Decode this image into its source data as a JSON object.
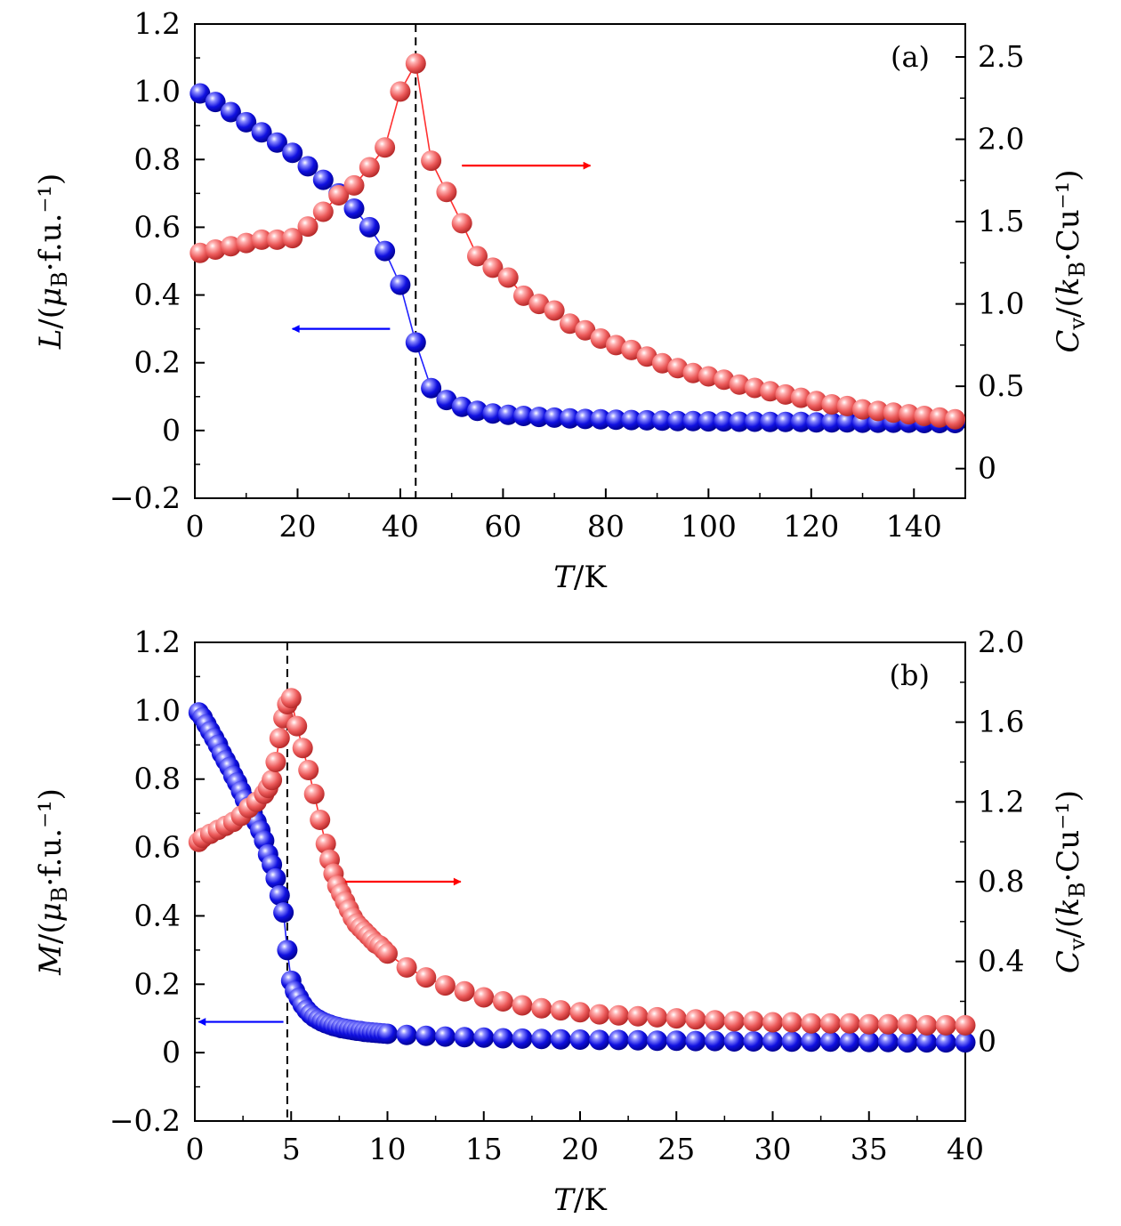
{
  "chart_data": [
    {
      "type": "scatter",
      "panel_label": "(a)",
      "xlabel": {
        "italic": "T",
        "rest": "/K"
      },
      "xlim": [
        0,
        150
      ],
      "xticks": [
        0,
        20,
        40,
        60,
        80,
        100,
        120,
        140
      ],
      "xtick_labels": [
        "0",
        "20",
        "40",
        "60",
        "80",
        "100",
        "120",
        "140"
      ],
      "ylabel_left": {
        "italic": "L",
        "rest": "/(μB·f.u.⁻¹)"
      },
      "ylim_left": [
        -0.2,
        1.2
      ],
      "yticks_left": [
        -0.2,
        0,
        0.2,
        0.4,
        0.6,
        0.8,
        1.0,
        1.2
      ],
      "ytick_labels_left": [
        "−0.2",
        "0",
        "0.2",
        "0.4",
        "0.6",
        "0.8",
        "1.0",
        "1.2"
      ],
      "ylabel_right": {
        "italic": "C",
        "rest": "v/(kB·Cu⁻¹)"
      },
      "ylim_right": [
        -0.18,
        2.7
      ],
      "yticks_right": [
        0,
        0.5,
        1.0,
        1.5,
        2.0,
        2.5
      ],
      "ytick_labels_right": [
        "0",
        "0.5",
        "1.0",
        "1.5",
        "2.0",
        "2.5"
      ],
      "vline_x": 43,
      "arrow_left": {
        "x_from": 38,
        "x_to": 19,
        "y": 0.3
      },
      "arrow_right": {
        "x_from": 52,
        "x_to": 77,
        "y": 1.84
      },
      "series": [
        {
          "name": "L",
          "axis": "left",
          "color": "#0f0fd6",
          "x": [
            1,
            4,
            7,
            10,
            13,
            16,
            19,
            22,
            25,
            28,
            31,
            34,
            37,
            40,
            43,
            46,
            49,
            52,
            55,
            58,
            61,
            64,
            67,
            70,
            73,
            76,
            79,
            82,
            85,
            88,
            91,
            94,
            97,
            100,
            103,
            106,
            109,
            112,
            115,
            118,
            121,
            124,
            127,
            130,
            133,
            136,
            139,
            142,
            145,
            148
          ],
          "y": [
            0.995,
            0.97,
            0.94,
            0.91,
            0.88,
            0.85,
            0.82,
            0.78,
            0.74,
            0.7,
            0.655,
            0.6,
            0.53,
            0.43,
            0.26,
            0.125,
            0.09,
            0.07,
            0.058,
            0.05,
            0.046,
            0.043,
            0.04,
            0.038,
            0.036,
            0.034,
            0.033,
            0.032,
            0.031,
            0.03,
            0.029,
            0.028,
            0.028,
            0.027,
            0.027,
            0.026,
            0.026,
            0.025,
            0.025,
            0.025,
            0.024,
            0.024,
            0.024,
            0.023,
            0.023,
            0.023,
            0.023,
            0.022,
            0.022,
            0.022
          ]
        },
        {
          "name": "Cv",
          "axis": "right",
          "color": "#e85050",
          "x": [
            1,
            4,
            7,
            10,
            13,
            16,
            19,
            22,
            25,
            28,
            31,
            34,
            37,
            40,
            43,
            46,
            49,
            52,
            55,
            58,
            61,
            64,
            67,
            70,
            73,
            76,
            79,
            82,
            85,
            88,
            91,
            94,
            97,
            100,
            103,
            106,
            109,
            112,
            115,
            118,
            121,
            124,
            127,
            130,
            133,
            136,
            139,
            142,
            145,
            148
          ],
          "y": [
            1.31,
            1.33,
            1.35,
            1.37,
            1.39,
            1.39,
            1.4,
            1.47,
            1.56,
            1.66,
            1.72,
            1.83,
            1.95,
            2.29,
            2.46,
            1.87,
            1.68,
            1.49,
            1.29,
            1.22,
            1.16,
            1.05,
            1.0,
            0.96,
            0.88,
            0.84,
            0.79,
            0.75,
            0.72,
            0.68,
            0.64,
            0.61,
            0.58,
            0.56,
            0.54,
            0.51,
            0.49,
            0.47,
            0.45,
            0.43,
            0.41,
            0.39,
            0.38,
            0.36,
            0.35,
            0.34,
            0.33,
            0.32,
            0.31,
            0.3
          ]
        }
      ]
    },
    {
      "type": "scatter",
      "panel_label": "(b)",
      "xlabel": {
        "italic": "T",
        "rest": "/K"
      },
      "xlim": [
        0,
        40
      ],
      "xticks": [
        0,
        5,
        10,
        15,
        20,
        25,
        30,
        35,
        40
      ],
      "xtick_labels": [
        "0",
        "5",
        "10",
        "15",
        "20",
        "25",
        "30",
        "35",
        "40"
      ],
      "ylabel_left": {
        "italic": "M",
        "rest": "/(μB·f.u.⁻¹)"
      },
      "ylim_left": [
        -0.2,
        1.2
      ],
      "yticks_left": [
        -0.2,
        0,
        0.2,
        0.4,
        0.6,
        0.8,
        1.0,
        1.2
      ],
      "ytick_labels_left": [
        "−0.2",
        "0",
        "0.2",
        "0.4",
        "0.6",
        "0.8",
        "1.0",
        "1.2"
      ],
      "ylabel_right": {
        "italic": "C",
        "rest": "v/(kB·Cu⁻¹)"
      },
      "ylim_right": [
        -0.4,
        2.0
      ],
      "yticks_right": [
        0,
        0.4,
        0.8,
        1.2,
        1.6,
        2.0
      ],
      "ytick_labels_right": [
        "0",
        "0.4",
        "0.8",
        "1.2",
        "1.6",
        "2.0"
      ],
      "vline_x": 4.8,
      "arrow_left": {
        "x_from": 4.6,
        "x_to": 0.2,
        "y": 0.09
      },
      "arrow_right": {
        "x_from": 7.8,
        "x_to": 13.8,
        "y": 0.8
      },
      "series": [
        {
          "name": "M",
          "axis": "left",
          "color": "#0f0fd6",
          "x": [
            0.2,
            0.4,
            0.6,
            0.8,
            1.0,
            1.2,
            1.4,
            1.6,
            1.8,
            2.0,
            2.2,
            2.4,
            2.6,
            2.8,
            3.0,
            3.2,
            3.4,
            3.6,
            3.8,
            4.0,
            4.2,
            4.4,
            4.6,
            4.8,
            5.0,
            5.2,
            5.4,
            5.6,
            5.8,
            6.0,
            6.2,
            6.4,
            6.6,
            6.8,
            7.0,
            7.2,
            7.4,
            7.6,
            7.8,
            8.0,
            8.2,
            8.4,
            8.6,
            8.8,
            9.0,
            9.2,
            9.4,
            9.6,
            9.8,
            10,
            11,
            12,
            13,
            14,
            15,
            16,
            17,
            18,
            19,
            20,
            21,
            22,
            23,
            24,
            25,
            26,
            27,
            28,
            29,
            30,
            31,
            32,
            33,
            34,
            35,
            36,
            37,
            38,
            39,
            40
          ],
          "y": [
            0.995,
            0.98,
            0.96,
            0.94,
            0.92,
            0.9,
            0.875,
            0.855,
            0.835,
            0.81,
            0.79,
            0.765,
            0.74,
            0.72,
            0.7,
            0.675,
            0.65,
            0.62,
            0.58,
            0.55,
            0.51,
            0.46,
            0.41,
            0.3,
            0.21,
            0.18,
            0.16,
            0.14,
            0.125,
            0.113,
            0.104,
            0.097,
            0.091,
            0.086,
            0.082,
            0.078,
            0.075,
            0.072,
            0.07,
            0.068,
            0.066,
            0.064,
            0.063,
            0.061,
            0.06,
            0.059,
            0.058,
            0.057,
            0.056,
            0.055,
            0.052,
            0.049,
            0.047,
            0.045,
            0.044,
            0.042,
            0.041,
            0.04,
            0.039,
            0.038,
            0.037,
            0.037,
            0.036,
            0.035,
            0.035,
            0.034,
            0.034,
            0.033,
            0.033,
            0.033,
            0.032,
            0.032,
            0.032,
            0.031,
            0.031,
            0.031,
            0.03,
            0.03,
            0.03,
            0.03
          ]
        },
        {
          "name": "Cv",
          "axis": "right",
          "color": "#e85050",
          "x": [
            0.2,
            0.4,
            0.8,
            1.2,
            1.6,
            2.0,
            2.4,
            2.8,
            3.2,
            3.6,
            3.8,
            4.0,
            4.2,
            4.4,
            4.6,
            4.8,
            5.0,
            5.3,
            5.6,
            5.9,
            6.2,
            6.5,
            6.8,
            7.0,
            7.2,
            7.4,
            7.6,
            7.8,
            8.0,
            8.2,
            8.4,
            8.6,
            8.8,
            9.0,
            9.2,
            9.4,
            9.6,
            9.8,
            10,
            11,
            12,
            13,
            14,
            15,
            16,
            17,
            18,
            19,
            20,
            21,
            22,
            23,
            24,
            25,
            26,
            27,
            28,
            29,
            30,
            31,
            32,
            33,
            34,
            35,
            36,
            37,
            38,
            39,
            40
          ],
          "y": [
            1.0,
            1.02,
            1.04,
            1.06,
            1.08,
            1.1,
            1.13,
            1.17,
            1.2,
            1.24,
            1.27,
            1.31,
            1.4,
            1.52,
            1.62,
            1.69,
            1.72,
            1.58,
            1.47,
            1.36,
            1.24,
            1.11,
            0.99,
            0.91,
            0.84,
            0.78,
            0.74,
            0.7,
            0.66,
            0.62,
            0.59,
            0.57,
            0.55,
            0.53,
            0.51,
            0.49,
            0.48,
            0.46,
            0.44,
            0.37,
            0.32,
            0.28,
            0.25,
            0.22,
            0.2,
            0.18,
            0.165,
            0.155,
            0.145,
            0.135,
            0.13,
            0.125,
            0.12,
            0.115,
            0.11,
            0.105,
            0.1,
            0.1,
            0.095,
            0.095,
            0.09,
            0.09,
            0.09,
            0.085,
            0.085,
            0.085,
            0.08,
            0.08,
            0.08
          ]
        }
      ]
    }
  ]
}
